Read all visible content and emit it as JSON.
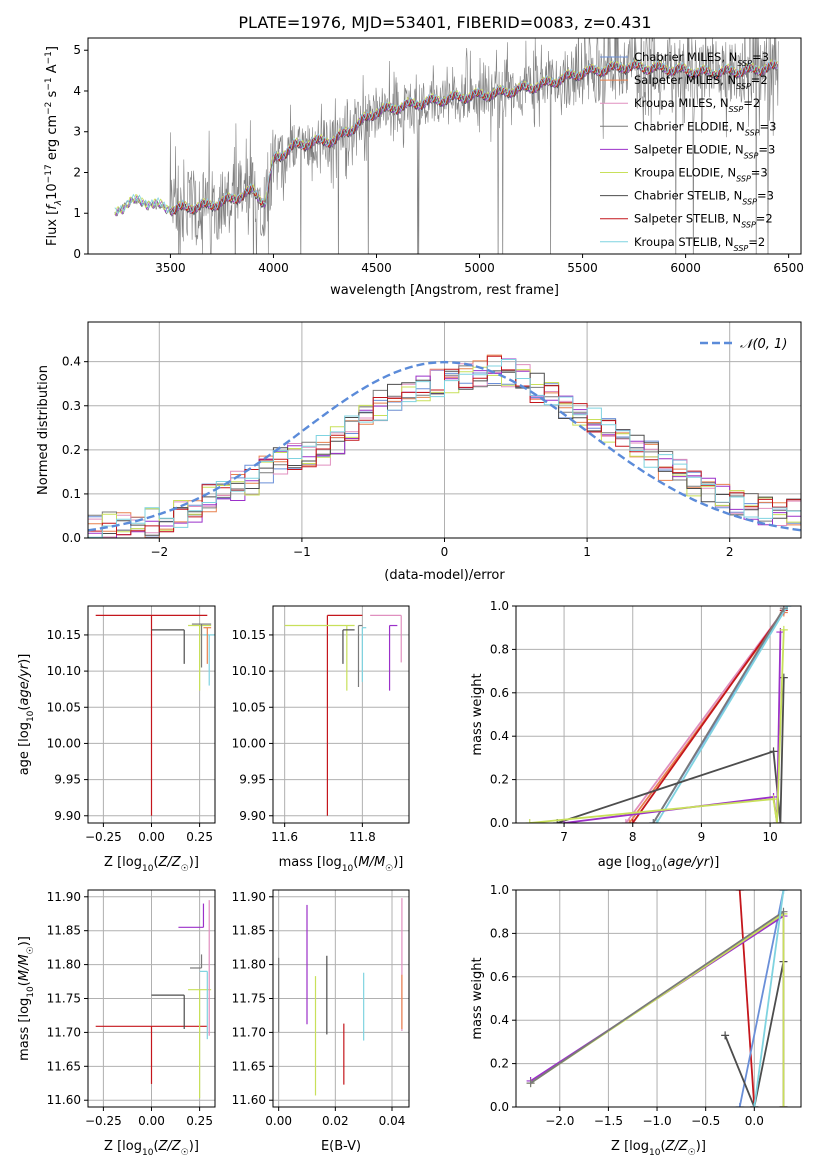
{
  "figure_title": "PLATE=1976, MJD=53401, FIBERID=0083, z=0.431",
  "colors": {
    "Chabrier MILES": "#6a8fd8",
    "Salpeter MILES": "#e8804e",
    "Kroupa MILES": "#e08fbf",
    "Chabrier ELODIE": "#7a7a7a",
    "Salpeter ELODIE": "#9b30c9",
    "Kroupa ELODIE": "#c8e05a",
    "Chabrier STELIB": "#4d4d4d",
    "Salpeter STELIB": "#c4161c",
    "Kroupa STELIB": "#7fd3e0",
    "data": "#808080",
    "normal": "#5b8bd9",
    "grid": "#b0b0b0"
  },
  "chart_data": [
    {
      "id": "spectrum",
      "type": "line",
      "xlabel": "wavelength [Angstrom, rest frame]",
      "ylabel": "Flux [f_λ 10^-17 erg cm^-2 s^-1 A^-1]",
      "xlim": [
        3100,
        6560
      ],
      "ylim": [
        0,
        5.3
      ],
      "xticks": [
        3500,
        4000,
        4500,
        5000,
        5500,
        6000,
        6500
      ],
      "yticks": [
        0,
        1,
        2,
        3,
        4,
        5
      ],
      "grid": false,
      "legend_position": "top-right",
      "series": [
        {
          "name": "Chabrier MILES, N_SSP=3"
        },
        {
          "name": "Salpeter MILES, N_SSP=2"
        },
        {
          "name": "Kroupa MILES, N_SSP=2"
        },
        {
          "name": "Chabrier ELODIE, N_SSP=3"
        },
        {
          "name": "Salpeter ELODIE, N_SSP=3"
        },
        {
          "name": "Kroupa ELODIE, N_SSP=3"
        },
        {
          "name": "Chabrier STELIB, N_SSP=3"
        },
        {
          "name": "Salpeter STELIB, N_SSP=2"
        },
        {
          "name": "Kroupa STELIB, N_SSP=2"
        }
      ],
      "continuum_knots": {
        "x": [
          3230,
          3300,
          3400,
          3500,
          3600,
          3700,
          3800,
          3900,
          3960,
          4000,
          4100,
          4200,
          4300,
          4500,
          4700,
          4900,
          5100,
          5300,
          5500,
          5700,
          5900,
          6100,
          6300,
          6450
        ],
        "y": [
          0.95,
          1.3,
          1.25,
          1.1,
          1.15,
          1.2,
          1.35,
          1.55,
          1.25,
          2.3,
          2.65,
          2.75,
          2.8,
          3.5,
          3.7,
          3.85,
          3.95,
          4.15,
          4.45,
          4.6,
          4.55,
          4.45,
          4.5,
          4.6
        ]
      }
    },
    {
      "id": "residuals",
      "type": "step",
      "xlabel": "(data-model)/error",
      "ylabel": "Normed distribution",
      "xlim": [
        -2.5,
        2.5
      ],
      "ylim": [
        0,
        0.49
      ],
      "xticks": [
        -2,
        -1,
        0,
        1,
        2
      ],
      "yticks": [
        0.0,
        0.1,
        0.2,
        0.3,
        0.4
      ],
      "grid": true,
      "legend_position": "top-right",
      "legend": "N(0,1)",
      "bin_edges_range": [
        -2.5,
        2.5
      ],
      "bins": 50,
      "histogram_means": [
        0.02,
        0.025,
        0.03,
        0.033,
        0.035,
        0.04,
        0.055,
        0.07,
        0.09,
        0.1,
        0.12,
        0.13,
        0.155,
        0.175,
        0.185,
        0.19,
        0.2,
        0.225,
        0.25,
        0.275,
        0.3,
        0.32,
        0.335,
        0.345,
        0.355,
        0.36,
        0.37,
        0.375,
        0.38,
        0.375,
        0.36,
        0.34,
        0.32,
        0.3,
        0.285,
        0.27,
        0.25,
        0.23,
        0.205,
        0.185,
        0.165,
        0.145,
        0.125,
        0.11,
        0.095,
        0.085,
        0.075,
        0.065,
        0.06,
        0.055
      ]
    },
    {
      "id": "age-vs-Z",
      "type": "errorbar",
      "xlabel": "Z [log10(Z/Z☉)]",
      "ylabel": "age [log10(age/yr)]",
      "xlim": [
        -0.33,
        0.33
      ],
      "ylim": [
        9.89,
        10.19
      ],
      "xticks": [
        -0.25,
        0.0,
        0.25
      ],
      "yticks": [
        9.9,
        9.95,
        10.0,
        10.05,
        10.1,
        10.15
      ],
      "grid": true,
      "points": [
        {
          "series": "Salpeter STELIB",
          "x": 0.0,
          "xerr": [
            0.29,
            0.29
          ],
          "y": 10.177,
          "yerr": [
            0.277,
            0.0
          ]
        },
        {
          "series": "Chabrier STELIB",
          "x": 0.17,
          "xerr": [
            0.17,
            0.0
          ],
          "y": 10.157,
          "yerr": [
            0.047,
            0.0
          ]
        },
        {
          "series": "Kroupa ELODIE",
          "x": 0.25,
          "xerr": [
            0.06,
            0.06
          ],
          "y": 10.163,
          "yerr": [
            0.09,
            0.0
          ]
        },
        {
          "series": "Chabrier ELODIE",
          "x": 0.26,
          "xerr": [
            0.05,
            0.05
          ],
          "y": 10.165,
          "yerr": [
            0.06,
            0.0
          ]
        },
        {
          "series": "Kroupa STELIB",
          "x": 0.3,
          "xerr": [
            0.03,
            0.03
          ],
          "y": 10.15,
          "yerr": [
            0.07,
            0.0
          ]
        },
        {
          "series": "Salpeter MILES",
          "x": 0.29,
          "xerr": [
            0.02,
            0.02
          ],
          "y": 10.16,
          "yerr": [
            0.05,
            0.0
          ]
        }
      ]
    },
    {
      "id": "age-vs-mass",
      "type": "errorbar",
      "xlabel": "mass [log10(M/M☉)]",
      "ylabel": "",
      "xlim": [
        11.57,
        11.92
      ],
      "ylim": [
        9.89,
        10.19
      ],
      "xticks": [
        11.6,
        11.8
      ],
      "yticks": [
        9.9,
        9.95,
        10.0,
        10.05,
        10.1,
        10.15
      ],
      "grid": true,
      "points": [
        {
          "series": "Salpeter STELIB",
          "x": 11.71,
          "xerr": [
            0.0,
            0.09
          ],
          "y": 10.177,
          "yerr": [
            0.277,
            0.0
          ]
        },
        {
          "series": "Kroupa ELODIE",
          "x": 11.76,
          "xerr": [
            0.16,
            0.02
          ],
          "y": 10.163,
          "yerr": [
            0.09,
            0.0
          ]
        },
        {
          "series": "Chabrier STELIB",
          "x": 11.75,
          "xerr": [
            0.0,
            0.03
          ],
          "y": 10.157,
          "yerr": [
            0.047,
            0.0
          ]
        },
        {
          "series": "Chabrier ELODIE",
          "x": 11.79,
          "xerr": [
            0.0,
            0.01
          ],
          "y": 10.163,
          "yerr": [
            0.085,
            0.0
          ]
        },
        {
          "series": "Kroupa STELIB",
          "x": 11.8,
          "xerr": [
            0.0,
            0.01
          ],
          "y": 10.16,
          "yerr": [
            0.075,
            0.0
          ]
        },
        {
          "series": "Salpeter ELODIE",
          "x": 11.87,
          "xerr": [
            0.0,
            0.02
          ],
          "y": 10.163,
          "yerr": [
            0.09,
            0.0
          ]
        },
        {
          "series": "Kroupa MILES",
          "x": 11.9,
          "xerr": [
            0.08,
            0.0
          ],
          "y": 10.177,
          "yerr": [
            0.065,
            0.0
          ]
        }
      ]
    },
    {
      "id": "mass-weight-vs-age",
      "type": "line",
      "xlabel": "age [log10(age/yr)]",
      "ylabel": "mass weight",
      "xlim": [
        6.3,
        10.45
      ],
      "ylim": [
        0,
        1.0
      ],
      "xticks": [
        7,
        8,
        9,
        10
      ],
      "yticks": [
        0.0,
        0.2,
        0.4,
        0.6,
        0.8,
        1.0
      ],
      "grid": true,
      "series": [
        {
          "series": "Salpeter MILES",
          "x": [
            7.95,
            10.2
          ],
          "y": [
            0.0,
            0.97
          ]
        },
        {
          "series": "Kroupa MILES",
          "x": [
            7.9,
            10.2
          ],
          "y": [
            0.0,
            0.98
          ]
        },
        {
          "series": "Salpeter STELIB",
          "x": [
            8.0,
            10.2
          ],
          "y": [
            0.0,
            0.98
          ]
        },
        {
          "series": "Chabrier MILES",
          "x": [
            8.3,
            10.25
          ],
          "y": [
            0.0,
            1.0
          ]
        },
        {
          "series": "Kroupa STELIB",
          "x": [
            8.35,
            10.25
          ],
          "y": [
            0.0,
            1.0
          ]
        },
        {
          "series": "Chabrier ELODIE",
          "x": [
            8.3,
            10.2
          ],
          "y": [
            0.0,
            0.99
          ]
        },
        {
          "series": "Chabrier STELIB",
          "x": [
            6.9,
            10.05,
            10.15,
            10.2
          ],
          "y": [
            0.0,
            0.33,
            0.0,
            0.67
          ]
        },
        {
          "series": "Salpeter ELODIE",
          "x": [
            7.0,
            10.05,
            10.1,
            10.15
          ],
          "y": [
            0.0,
            0.12,
            0.0,
            0.88
          ]
        },
        {
          "series": "Kroupa ELODIE",
          "x": [
            6.5,
            10.05,
            10.1,
            10.2
          ],
          "y": [
            0.0,
            0.11,
            0.0,
            0.89
          ]
        }
      ]
    },
    {
      "id": "mass-vs-Z",
      "type": "errorbar",
      "xlabel": "Z [log10(Z/Z☉)]",
      "ylabel": "mass [log10(M/M☉)]",
      "xlim": [
        -0.33,
        0.33
      ],
      "ylim": [
        11.59,
        11.91
      ],
      "xticks": [
        -0.25,
        0.0,
        0.25
      ],
      "yticks": [
        11.6,
        11.65,
        11.7,
        11.75,
        11.8,
        11.85,
        11.9
      ],
      "grid": true,
      "points": [
        {
          "series": "Salpeter STELIB",
          "x": 0.0,
          "xerr": [
            0.29,
            0.29
          ],
          "y": 11.709,
          "yerr": [
            0.085,
            0.0
          ]
        },
        {
          "series": "Chabrier STELIB",
          "x": 0.17,
          "xerr": [
            0.17,
            0.0
          ],
          "y": 11.755,
          "yerr": [
            0.05,
            0.0
          ]
        },
        {
          "series": "Kroupa ELODIE",
          "x": 0.25,
          "xerr": [
            0.06,
            0.06
          ],
          "y": 11.763,
          "yerr": [
            0.16,
            0.0
          ]
        },
        {
          "series": "Salpeter ELODIE",
          "x": 0.27,
          "xerr": [
            0.13,
            0.0
          ],
          "y": 11.855,
          "yerr": [
            0.0,
            0.035
          ]
        },
        {
          "series": "Chabrier ELODIE",
          "x": 0.26,
          "xerr": [
            0.06,
            0.0
          ],
          "y": 11.795,
          "yerr": [
            0.0,
            0.02
          ]
        },
        {
          "series": "Kroupa STELIB",
          "x": 0.29,
          "xerr": [
            0.04,
            0.0
          ],
          "y": 11.79,
          "yerr": [
            0.1,
            0.0
          ]
        },
        {
          "series": "Kroupa MILES",
          "x": 0.3,
          "xerr": [
            0.0,
            0.0
          ],
          "y": 11.895,
          "yerr": [
            0.2,
            0.0
          ]
        }
      ]
    },
    {
      "id": "mass-vs-EBV",
      "type": "errorbar",
      "xlabel": "E(B-V)",
      "ylabel": "",
      "xlim": [
        -0.002,
        0.046
      ],
      "ylim": [
        11.59,
        11.91
      ],
      "xticks": [
        0.0,
        0.02,
        0.04
      ],
      "yticks": [
        11.6,
        11.65,
        11.7,
        11.75,
        11.8,
        11.85,
        11.9
      ],
      "grid": true,
      "points": [
        {
          "series": "Chabrier ELODIE",
          "x": 0.0,
          "y": 11.755,
          "yerr": [
            0.055,
            0.055
          ]
        },
        {
          "series": "Salpeter ELODIE",
          "x": 0.01,
          "y": 11.8,
          "yerr": [
            0.088,
            0.088
          ]
        },
        {
          "series": "Kroupa ELODIE",
          "x": 0.013,
          "y": 11.695,
          "yerr": [
            0.088,
            0.088
          ]
        },
        {
          "series": "Chabrier STELIB",
          "x": 0.017,
          "y": 11.755,
          "yerr": [
            0.058,
            0.058
          ]
        },
        {
          "series": "Salpeter STELIB",
          "x": 0.023,
          "y": 11.668,
          "yerr": [
            0.045,
            0.045
          ]
        },
        {
          "series": "Kroupa STELIB",
          "x": 0.03,
          "y": 11.738,
          "yerr": [
            0.05,
            0.05
          ]
        },
        {
          "series": "Kroupa MILES",
          "x": 0.0435,
          "y": 11.8,
          "yerr": [
            0.098,
            0.098
          ]
        },
        {
          "series": "Salpeter MILES",
          "x": 0.0435,
          "y": 11.745,
          "yerr": [
            0.04,
            0.04
          ]
        }
      ]
    },
    {
      "id": "mass-weight-vs-Z",
      "type": "line",
      "xlabel": "Z [log10(Z/Z☉)]",
      "ylabel": "mass weight",
      "xlim": [
        -2.45,
        0.48
      ],
      "ylim": [
        0,
        1.0
      ],
      "xticks": [
        -2.0,
        -1.5,
        -1.0,
        -0.5,
        0.0
      ],
      "yticks": [
        0.0,
        0.2,
        0.4,
        0.6,
        0.8,
        1.0
      ],
      "grid": true,
      "series": [
        {
          "series": "Salpeter STELIB",
          "x": [
            -0.15,
            0.0
          ],
          "y": [
            1.0,
            0.0
          ]
        },
        {
          "series": "Chabrier MILES",
          "x": [
            -0.15,
            0.3
          ],
          "y": [
            0.0,
            1.0
          ]
        },
        {
          "series": "Chabrier STELIB",
          "x": [
            -0.3,
            0.0,
            0.3,
            0.3
          ],
          "y": [
            0.33,
            0.0,
            0.67,
            0.0
          ]
        },
        {
          "series": "Salpeter ELODIE",
          "x": [
            -2.3,
            0.3,
            0.3
          ],
          "y": [
            0.12,
            0.88,
            0.0
          ]
        },
        {
          "series": "Kroupa ELODIE",
          "x": [
            -2.3,
            0.3,
            0.3
          ],
          "y": [
            0.11,
            0.89,
            0.0
          ]
        },
        {
          "series": "Chabrier ELODIE",
          "x": [
            -2.3,
            0.3
          ],
          "y": [
            0.11,
            0.9
          ]
        },
        {
          "series": "Kroupa STELIB",
          "x": [
            0.0,
            0.3
          ],
          "y": [
            0.0,
            1.0
          ]
        }
      ]
    }
  ]
}
